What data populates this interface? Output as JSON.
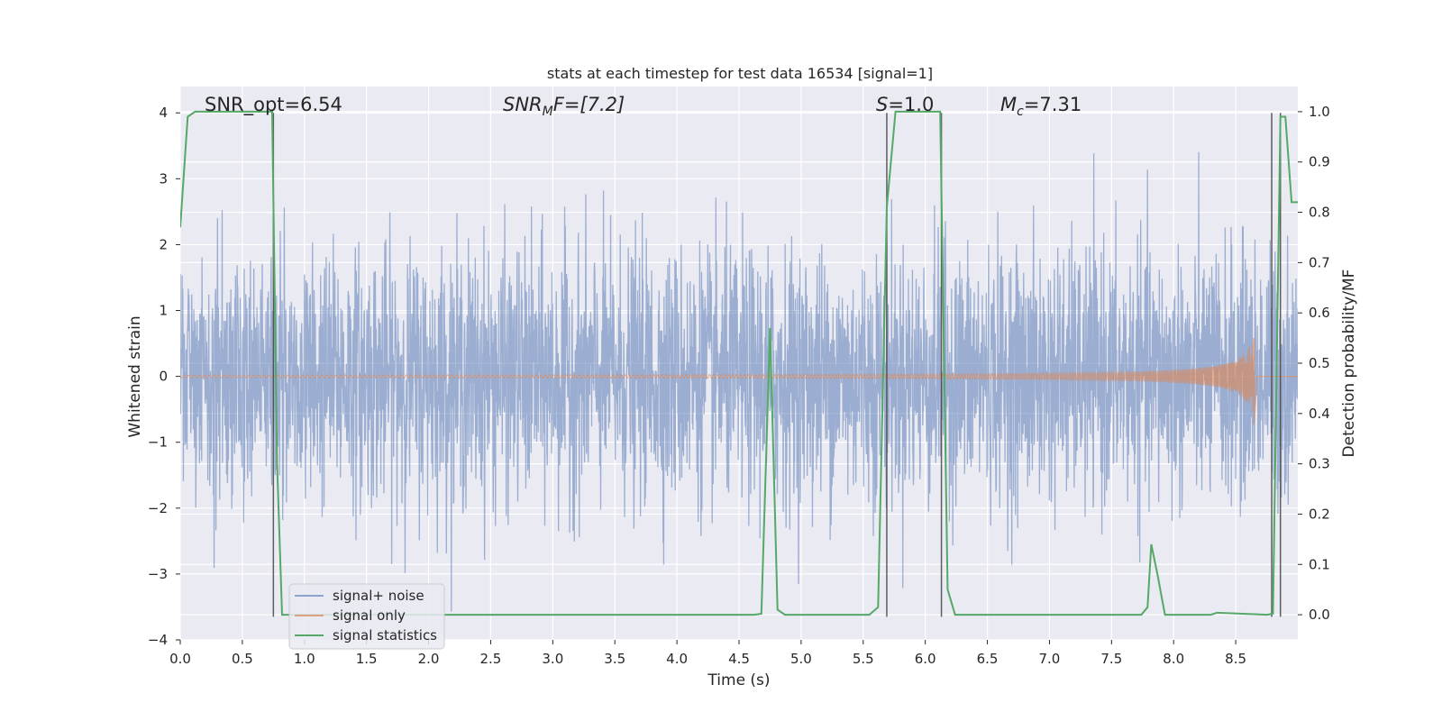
{
  "chart_data": {
    "type": "line",
    "title": "stats at each timestep for test data 16534 [signal=1]",
    "xlabel": "Time (s)",
    "ylabel": "Whitened strain",
    "y2label": "Detection probability/MF",
    "xlim": [
      0.0,
      9.0
    ],
    "ylim": [
      -4,
      4.4
    ],
    "y2lim": [
      -0.05,
      1.05
    ],
    "x_ticks": [
      "0.0",
      "0.5",
      "1.0",
      "1.5",
      "2.0",
      "2.5",
      "3.0",
      "3.5",
      "4.0",
      "4.5",
      "5.0",
      "5.5",
      "6.0",
      "6.5",
      "7.0",
      "7.5",
      "8.0",
      "8.5"
    ],
    "y_ticks": [
      "−4",
      "−3",
      "−2",
      "−1",
      "0",
      "1",
      "2",
      "3",
      "4"
    ],
    "y2_ticks": [
      "0.0",
      "0.1",
      "0.2",
      "0.3",
      "0.4",
      "0.5",
      "0.6",
      "0.7",
      "0.8",
      "0.9",
      "1.0"
    ],
    "grid": true,
    "legend_placement": "lower-left",
    "annotations": {
      "snr_opt": "SNR_opt=6.54",
      "snr_mf": "SNR",
      "snr_mf_sub": "M",
      "snr_mf_rest": "F=[7.2]",
      "s": "S",
      "s_rest": "=1.0",
      "mc": "M",
      "mc_sub": "c",
      "mc_rest": "=7.31"
    },
    "vertical_markers_x": [
      0.75,
      5.69,
      6.13,
      8.79,
      8.86
    ],
    "series": [
      {
        "name": "signal+ noise",
        "color": "#4c72b0",
        "opacity": 0.5,
        "description_values": {
          "x_start": 0.0,
          "x_end": 9.0,
          "typical_amplitude": 1.5,
          "max": 4.0,
          "min": -3.65
        }
      },
      {
        "name": "signal only",
        "color": "#dd8452",
        "opacity": 0.6,
        "chirp": {
          "x_start": 0.0,
          "x_merger": 8.65,
          "amp_start": 0.01,
          "amp_end_pos": 0.65,
          "amp_end_neg": -0.72
        }
      },
      {
        "name": "signal statistics",
        "color": "#55a868",
        "axis": "right",
        "x": [
          0.0,
          0.06,
          0.12,
          0.74,
          0.78,
          0.82,
          4.62,
          4.68,
          4.75,
          4.81,
          4.87,
          5.55,
          5.62,
          5.69,
          5.76,
          5.83,
          6.12,
          6.18,
          6.24,
          7.74,
          7.79,
          7.82,
          7.87,
          7.93,
          8.3,
          8.35,
          8.75,
          8.8,
          8.86,
          8.9,
          8.95,
          9.0
        ],
        "y": [
          0.77,
          0.99,
          1.0,
          1.0,
          0.3,
          0.0,
          0.0,
          0.002,
          0.57,
          0.01,
          0.0,
          0.0,
          0.015,
          0.81,
          1.0,
          1.0,
          1.0,
          0.05,
          0.0,
          0.0,
          0.015,
          0.14,
          0.08,
          0.0,
          0.0,
          0.004,
          0.0,
          0.002,
          0.99,
          0.99,
          0.82,
          0.82
        ]
      }
    ]
  }
}
